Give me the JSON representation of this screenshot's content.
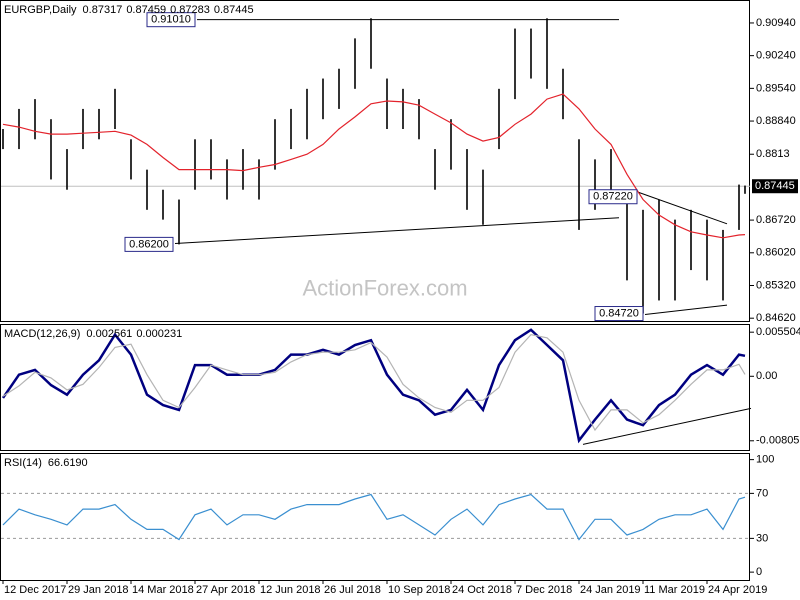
{
  "chart_data": [
    {
      "type": "ohlc",
      "name": "EURGBP,Daily",
      "header_values": [
        0.87317,
        0.87459,
        0.87283,
        0.87445
      ],
      "x": [
        0,
        8,
        16,
        24,
        32,
        40,
        48,
        56,
        64,
        72,
        80,
        88,
        96,
        104,
        112,
        120,
        128,
        136,
        144,
        152,
        160,
        168,
        176,
        184,
        192,
        200,
        208,
        216,
        224,
        232,
        240,
        248,
        256,
        264,
        272,
        280,
        288,
        296,
        304,
        312,
        320,
        328,
        336,
        344,
        352,
        360,
        368,
        371
      ],
      "high": [
        0.8867,
        0.891,
        0.8931,
        0.8888,
        0.8824,
        0.891,
        0.891,
        0.8953,
        0.8845,
        0.878,
        0.8737,
        0.8716,
        0.8845,
        0.8845,
        0.8802,
        0.8824,
        0.8802,
        0.8888,
        0.891,
        0.8953,
        0.8975,
        0.8996,
        0.9061,
        0.9104,
        0.8975,
        0.8953,
        0.8931,
        0.8824,
        0.8888,
        0.8824,
        0.878,
        0.8953,
        0.9082,
        0.9082,
        0.9104,
        0.8996,
        0.8845,
        0.8802,
        0.8824,
        0.8716,
        0.8694,
        0.8716,
        0.8673,
        0.8694,
        0.8673,
        0.8651,
        0.8748,
        0.87459
      ],
      "low": [
        0.8824,
        0.8824,
        0.8845,
        0.8759,
        0.8737,
        0.8824,
        0.8845,
        0.8867,
        0.8759,
        0.8694,
        0.8673,
        0.862,
        0.8737,
        0.8759,
        0.8716,
        0.8737,
        0.8716,
        0.878,
        0.8824,
        0.8845,
        0.8888,
        0.891,
        0.8953,
        0.8996,
        0.8867,
        0.8867,
        0.8845,
        0.8737,
        0.878,
        0.8694,
        0.8662,
        0.8824,
        0.8931,
        0.8975,
        0.8953,
        0.8888,
        0.8651,
        0.8694,
        0.8716,
        0.8543,
        0.8472,
        0.85,
        0.85,
        0.8565,
        0.8543,
        0.85,
        0.8651,
        0.87283
      ],
      "color": "#000000",
      "series": [
        {
          "color": "#e3232c",
          "values": [
            0.8877,
            0.8871,
            0.8862,
            0.8856,
            0.8856,
            0.8858,
            0.886,
            0.8862,
            0.8854,
            0.8834,
            0.8806,
            0.878,
            0.878,
            0.878,
            0.878,
            0.8778,
            0.8785,
            0.8791,
            0.8802,
            0.8813,
            0.8834,
            0.8867,
            0.8893,
            0.8921,
            0.8927,
            0.8925,
            0.8918,
            0.8899,
            0.888,
            0.8856,
            0.8841,
            0.8849,
            0.8877,
            0.8899,
            0.8931,
            0.8942,
            0.891,
            0.8867,
            0.8834,
            0.877,
            0.8716,
            0.8683,
            0.8662,
            0.8647,
            0.864,
            0.8634,
            0.864,
            0.8641
          ]
        }
      ],
      "xlim": [
        -1.5,
        373.5
      ],
      "ylim": [
        0.8456,
        0.9141
      ],
      "yticks": [
        {
          "value": 0.9094,
          "label": "0.90940"
        },
        {
          "value": 0.9024,
          "label": "0.90240"
        },
        {
          "value": 0.8954,
          "label": "0.89540"
        },
        {
          "value": 0.8884,
          "label": "0.88840"
        },
        0.8813,
        {
          "value": 0.8672,
          "label": "0.86720"
        },
        {
          "value": 0.8602,
          "label": "0.86020"
        },
        {
          "value": 0.8532,
          "label": "0.85320"
        },
        {
          "value": 0.8462,
          "label": "0.84620"
        }
      ],
      "price_line": 0.87445,
      "annotations": [
        {
          "value": 0.862,
          "label": "0.86200",
          "x": [
            86,
            308
          ],
          "y": [
            0.8622,
            0.8677
          ]
        },
        {
          "value": 0.9101,
          "label": "0.91010",
          "x": [
            97,
            308
          ],
          "y": [
            0.9101,
            0.9101
          ]
        },
        {
          "value": 0.8722,
          "label": "0.87220",
          "x": [
            318,
            362
          ],
          "y": [
            0.8731,
            0.8664
          ]
        },
        {
          "value": 0.8472,
          "label": "0.84720",
          "x": [
            321,
            362
          ],
          "y": [
            0.847,
            0.849
          ]
        }
      ],
      "watermark": "ActionForex.com"
    },
    {
      "type": "line",
      "name": "MACD(12,26,9)",
      "header_values": [
        0.002561,
        0.000231
      ],
      "x": [
        0,
        8,
        16,
        24,
        32,
        40,
        48,
        56,
        64,
        72,
        80,
        88,
        96,
        104,
        112,
        120,
        128,
        136,
        144,
        152,
        160,
        168,
        176,
        184,
        192,
        200,
        208,
        216,
        224,
        232,
        240,
        248,
        256,
        264,
        272,
        280,
        288,
        296,
        304,
        312,
        320,
        328,
        336,
        344,
        352,
        360,
        368,
        371
      ],
      "series": [
        {
          "color": "#000080",
          "values": [
            -0.0027,
            0.0002,
            0.0008,
            -0.0011,
            -0.0023,
            0.0002,
            0.002,
            0.0052,
            0.0027,
            -0.0023,
            -0.0036,
            -0.0042,
            0.0014,
            0.0014,
            0.0002,
            0.0002,
            0.0002,
            0.0008,
            0.0027,
            0.0027,
            0.0033,
            0.0027,
            0.0039,
            0.0045,
            0.0002,
            -0.0023,
            -0.003,
            -0.0048,
            -0.0042,
            -0.0017,
            -0.0042,
            0.0014,
            0.0045,
            0.0058,
            0.0039,
            0.002,
            -0.008,
            -0.0054,
            -0.003,
            -0.0054,
            -0.0061,
            -0.0036,
            -0.0023,
            0.0002,
            0.0014,
            0.0002,
            0.0027,
            0.002561
          ]
        },
        {
          "color": "#b4b4b4",
          "values": [
            -0.0025,
            -0.0012,
            0.0005,
            -0.0002,
            -0.0017,
            -0.001,
            0.0011,
            0.0036,
            0.004,
            0.0002,
            -0.003,
            -0.0039,
            -0.0014,
            0.0014,
            0.0008,
            0.0002,
            0.0002,
            0.0005,
            0.0018,
            0.0027,
            0.003,
            0.003,
            0.0033,
            0.0042,
            0.0024,
            -0.001,
            -0.0027,
            -0.0039,
            -0.0045,
            -0.003,
            -0.003,
            -0.0014,
            0.003,
            0.0052,
            0.0048,
            0.003,
            -0.003,
            -0.0067,
            -0.0042,
            -0.0042,
            -0.0058,
            -0.0048,
            -0.003,
            -0.001,
            0.0008,
            0.0008,
            0.0015,
            0.000231
          ]
        }
      ],
      "xlim": [
        -1.5,
        373.5
      ],
      "ylim": [
        -0.0092,
        0.0064
      ],
      "yticks": [
        0.005504,
        {
          "value": 0,
          "label": "0.00"
        },
        -0.00805
      ],
      "annotations": [
        {
          "x": [
            290,
            374
          ],
          "y": [
            -0.0085,
            -0.004
          ]
        }
      ]
    },
    {
      "type": "line",
      "name": "RSI(14)",
      "header_values": [
        {
          "value": 66.619,
          "label": "66.6190"
        }
      ],
      "x": [
        0,
        8,
        16,
        24,
        32,
        40,
        48,
        56,
        64,
        72,
        80,
        88,
        96,
        104,
        112,
        120,
        128,
        136,
        144,
        152,
        160,
        168,
        176,
        184,
        192,
        200,
        208,
        216,
        224,
        232,
        240,
        248,
        256,
        264,
        272,
        280,
        288,
        296,
        304,
        312,
        320,
        328,
        336,
        344,
        352,
        360,
        368,
        371
      ],
      "series": [
        {
          "color": "#3a8fd0",
          "values": [
            42,
            56,
            51,
            47,
            42,
            56,
            56,
            60,
            47,
            38,
            38,
            29,
            51,
            56,
            42,
            51,
            51,
            47,
            56,
            60,
            60,
            60,
            65,
            69,
            47,
            51,
            42,
            33,
            47,
            56,
            42,
            60,
            65,
            69,
            56,
            56,
            29,
            47,
            47,
            33,
            38,
            47,
            51,
            51,
            56,
            38,
            65,
            66.619
          ]
        }
      ],
      "xlim": [
        -1.5,
        373.5
      ],
      "ylim": [
        -7,
        105
      ],
      "yticks": [
        100,
        70,
        30,
        0
      ],
      "levels": [
        70,
        30
      ],
      "xticks": [
        {
          "value": 0,
          "label": "12 Dec 2017"
        },
        {
          "value": 32,
          "label": "29 Jan 2018"
        },
        {
          "value": 64,
          "label": "14 Mar 2018"
        },
        {
          "value": 96,
          "label": "27 Apr 2018"
        },
        {
          "value": 128,
          "label": "12 Jun 2018"
        },
        {
          "value": 160,
          "label": "26 Jul 2018"
        },
        {
          "value": 192,
          "label": "10 Sep 2018"
        },
        {
          "value": 224,
          "label": "24 Oct 2018"
        },
        {
          "value": 256,
          "label": "7 Dec 2018"
        },
        {
          "value": 288,
          "label": "24 Jan 2019"
        },
        {
          "value": 320,
          "label": "11 Mar 2019"
        },
        {
          "value": 352,
          "label": "24 Apr 2019"
        }
      ]
    }
  ]
}
